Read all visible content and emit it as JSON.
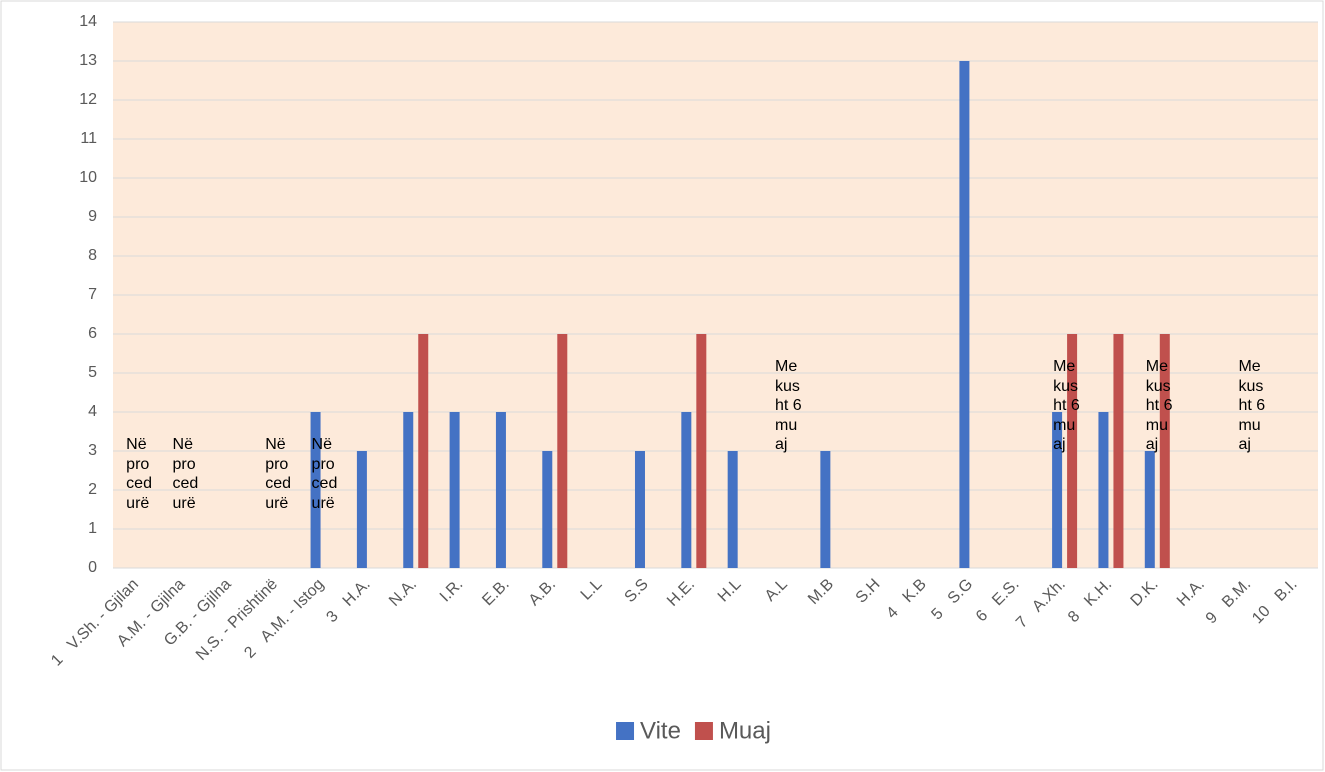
{
  "chart_data": {
    "type": "bar",
    "groups": [
      {
        "label": "1",
        "categories": [
          "V.Sh. - Gjilan",
          "A.M. - Gjilna",
          "G.B. - Gjilna",
          "N.S. - Prishtinë"
        ]
      },
      {
        "label": "2",
        "categories": [
          "A.M. - Istog"
        ]
      },
      {
        "label": "3",
        "categories": [
          "H.A.",
          "N.A.",
          "I.R.",
          "E.B.",
          "A.B.",
          "L.L",
          "S.S",
          "H.E.",
          "H.L",
          "A.L",
          "M.B",
          "S.H"
        ]
      },
      {
        "label": "4",
        "categories": [
          "K.B"
        ]
      },
      {
        "label": "5",
        "categories": [
          "S.G"
        ]
      },
      {
        "label": "6",
        "categories": [
          "E.S."
        ]
      },
      {
        "label": "7",
        "categories": [
          "A.Xh."
        ]
      },
      {
        "label": "8",
        "categories": [
          "K.H.",
          "D.K.",
          "H.A."
        ]
      },
      {
        "label": "9",
        "categories": [
          "B.M."
        ]
      },
      {
        "label": "10",
        "categories": [
          "B.I."
        ]
      }
    ],
    "series": [
      {
        "name": "Vite",
        "color": "#4472c4",
        "values": [
          null,
          null,
          null,
          null,
          4,
          3,
          4,
          4,
          4,
          3,
          null,
          3,
          4,
          3,
          null,
          3,
          null,
          null,
          13,
          null,
          4,
          4,
          3,
          null,
          null,
          null
        ]
      },
      {
        "name": "Muaj",
        "color": "#c0504d",
        "values": [
          null,
          null,
          null,
          null,
          null,
          null,
          6,
          null,
          null,
          6,
          null,
          null,
          6,
          null,
          null,
          null,
          null,
          null,
          null,
          null,
          6,
          6,
          6,
          null,
          null,
          null
        ]
      }
    ],
    "annotations": [
      {
        "text": "Në procedurë",
        "category": "V.Sh. - Gjilan"
      },
      {
        "text": "Në procedurë",
        "category": "A.M. - Gjilna"
      },
      {
        "text": "Në procedurë",
        "category": "N.S. - Prishtinë"
      },
      {
        "text": "Në procedurë",
        "category": "A.M. - Istog"
      },
      {
        "text": "Me kusht 6 muaj",
        "category": "A.L"
      },
      {
        "text": "Me kusht 6 muaj",
        "category": "A.Xh."
      },
      {
        "text": "Me kusht 6 muaj",
        "category": "D.K."
      },
      {
        "text": "Me kusht 6 muaj",
        "category": "B.M."
      }
    ],
    "ylim": [
      0,
      14
    ],
    "yticks": [
      0,
      1,
      2,
      3,
      4,
      5,
      6,
      7,
      8,
      9,
      10,
      11,
      12,
      13,
      14
    ],
    "grid": true,
    "legend": "bottom"
  }
}
